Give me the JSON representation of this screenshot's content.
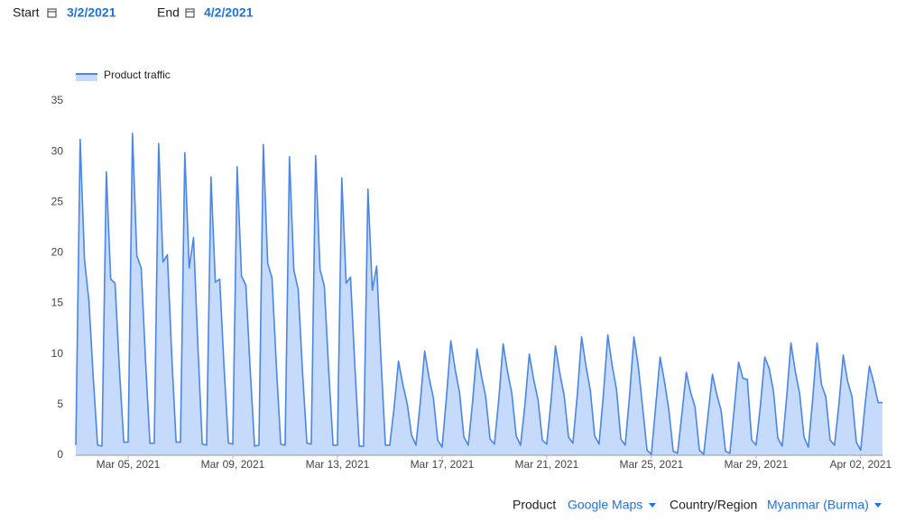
{
  "controls": {
    "start_label": "Start",
    "start_date": "3/2/2021",
    "end_label": "End",
    "end_date": "4/2/2021"
  },
  "filters": {
    "product_label": "Product",
    "product": "Google Maps",
    "region_label": "Country/Region",
    "region": "Myanmar (Burma)"
  },
  "chart_data": {
    "type": "area",
    "legend": "top-left",
    "series": [
      {
        "name": "Product traffic",
        "color": "#4a86e8",
        "fill": "#c6dafc",
        "values": [
          1.0,
          31.2,
          19.3,
          15.3,
          7.7,
          1.0,
          0.9,
          28.0,
          17.4,
          17.0,
          8.5,
          1.3,
          1.3,
          31.8,
          19.7,
          18.5,
          9.3,
          1.2,
          1.2,
          30.8,
          19.1,
          19.8,
          9.9,
          1.3,
          1.3,
          29.9,
          18.5,
          21.5,
          10.8,
          1.1,
          1.0,
          27.5,
          17.1,
          17.4,
          8.7,
          1.2,
          1.1,
          28.5,
          17.7,
          16.8,
          8.4,
          0.9,
          1.0,
          30.7,
          19.0,
          17.5,
          8.8,
          1.1,
          1.0,
          29.5,
          18.3,
          16.4,
          8.2,
          1.2,
          1.1,
          29.6,
          18.4,
          16.7,
          8.4,
          1.0,
          1.0,
          27.4,
          17.0,
          17.6,
          8.8,
          0.9,
          0.9,
          26.3,
          16.3,
          18.7,
          9.4,
          1.0,
          1.0,
          4.7,
          9.3,
          7.0,
          5.1,
          2.0,
          1.0,
          5.2,
          10.3,
          7.7,
          5.7,
          1.5,
          0.8,
          5.7,
          11.3,
          8.5,
          6.2,
          1.8,
          1.0,
          5.3,
          10.5,
          7.9,
          5.8,
          1.6,
          1.1,
          5.5,
          11.0,
          8.3,
          6.1,
          1.9,
          1.0,
          5.0,
          10.0,
          7.5,
          5.5,
          1.5,
          1.1,
          5.4,
          10.8,
          8.1,
          5.9,
          1.8,
          1.2,
          5.9,
          11.7,
          8.8,
          6.4,
          1.9,
          1.1,
          6.0,
          11.9,
          8.9,
          6.5,
          1.6,
          1.0,
          5.9,
          11.7,
          8.8,
          4.7,
          0.5,
          0.1,
          4.9,
          9.7,
          7.3,
          4.5,
          0.4,
          0.2,
          4.1,
          8.2,
          6.2,
          4.8,
          0.5,
          0.1,
          4.0,
          8.0,
          6.0,
          4.4,
          0.4,
          0.2,
          4.6,
          9.2,
          7.6,
          7.5,
          1.5,
          1.0,
          4.9,
          9.7,
          8.6,
          6.3,
          1.7,
          0.9,
          5.6,
          11.1,
          8.3,
          6.1,
          1.8,
          0.8,
          5.6,
          11.1,
          7.0,
          5.8,
          1.5,
          1.0,
          5.0,
          9.9,
          7.3,
          5.8,
          1.3,
          0.5,
          5.0,
          8.8,
          7.2,
          5.2,
          5.2
        ]
      }
    ],
    "xlim": [
      0,
      185
    ],
    "xticks": [
      {
        "value": 12,
        "label": "Mar 05, 2021"
      },
      {
        "value": 36,
        "label": "Mar 09, 2021"
      },
      {
        "value": 60,
        "label": "Mar 13, 2021"
      },
      {
        "value": 84,
        "label": "Mar 17, 2021"
      },
      {
        "value": 108,
        "label": "Mar 21, 2021"
      },
      {
        "value": 132,
        "label": "Mar 25, 2021"
      },
      {
        "value": 156,
        "label": "Mar 29, 2021"
      },
      {
        "value": 180,
        "label": "Apr 02, 2021"
      }
    ],
    "ylim": [
      0,
      35
    ],
    "yticks": [
      0,
      5,
      10,
      15,
      20,
      25,
      30,
      35
    ]
  }
}
